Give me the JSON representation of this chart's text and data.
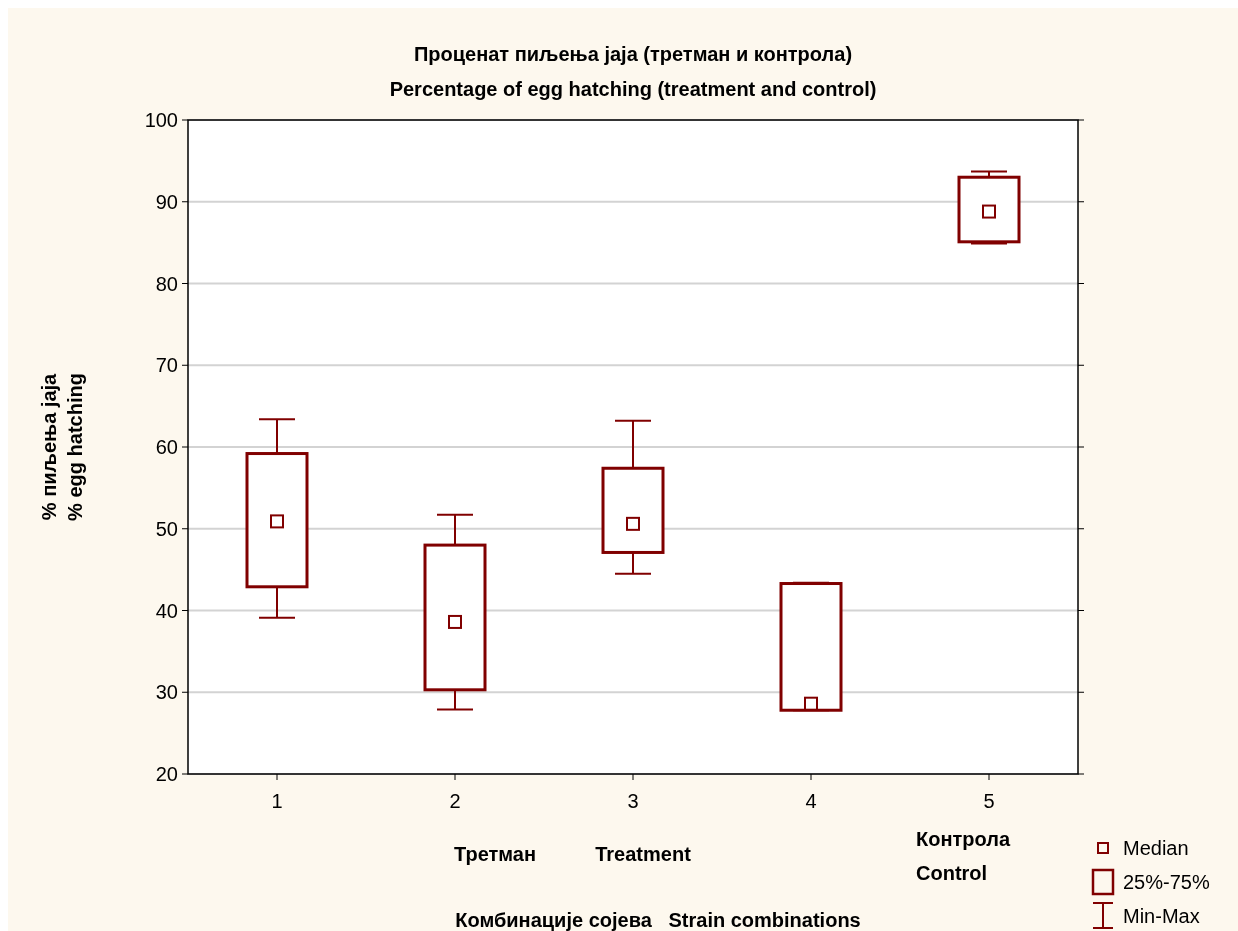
{
  "chart_data": {
    "type": "box",
    "title": "Проценат пиљења јаја (третман и контрола)",
    "subtitle": "Percentage of egg hatching (treatment and control)",
    "xlabel": "Комбинације сојева   Strain combinations",
    "ylabel": "% пиљења јаја\n% egg hatching",
    "categories": [
      "1",
      "2",
      "3",
      "4",
      "5"
    ],
    "series": [
      {
        "color": "#800000",
        "boxes": [
          {
            "low": 39.1,
            "q1": 42.9,
            "median": 50.9,
            "q3": 59.2,
            "high": 63.4
          },
          {
            "low": 27.9,
            "q1": 30.3,
            "median": 38.6,
            "q3": 48.0,
            "high": 51.7
          },
          {
            "low": 44.5,
            "q1": 47.1,
            "median": 50.6,
            "q3": 57.4,
            "high": 63.2
          },
          {
            "low": 27.8,
            "q1": 27.8,
            "median": 28.6,
            "q3": 43.3,
            "high": 43.4
          },
          {
            "low": 84.9,
            "q1": 85.1,
            "median": 88.8,
            "q3": 93.0,
            "high": 93.7
          }
        ]
      }
    ],
    "ylim": [
      20,
      100
    ],
    "yticks": [
      20,
      30,
      40,
      50,
      60,
      70,
      80,
      90,
      100
    ],
    "grid": "y",
    "annotations": [
      "Третман",
      "Treatment",
      "Контрола\nControl",
      "Median",
      "25%-75%",
      "Min-Max"
    ]
  }
}
